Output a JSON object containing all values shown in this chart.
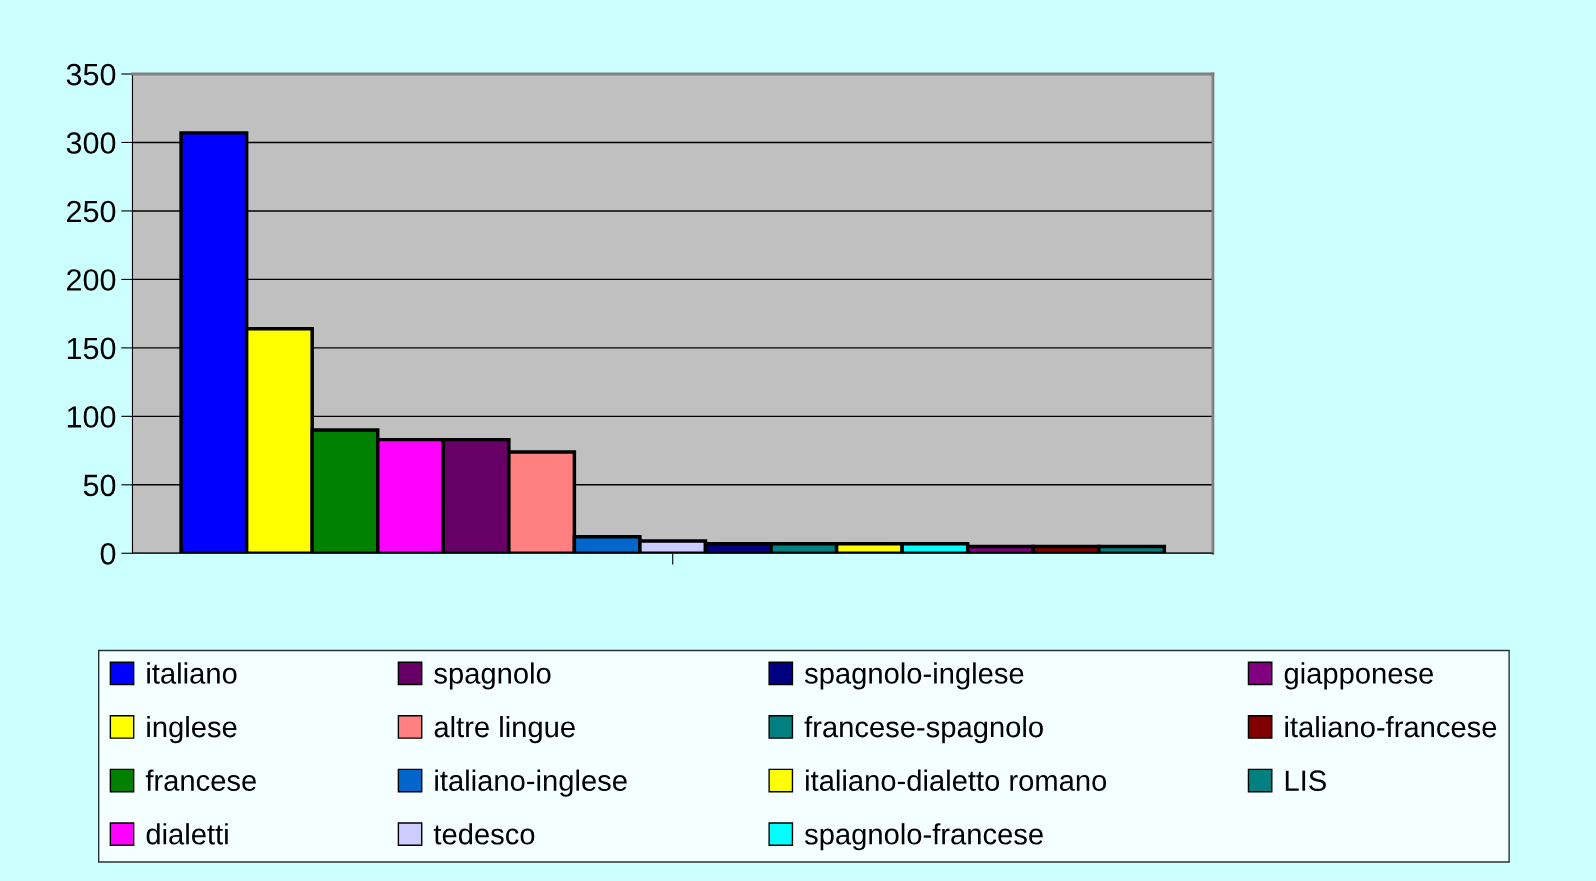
{
  "chart_data": {
    "type": "bar",
    "categories": [
      null
    ],
    "series": [
      {
        "name": "italiano",
        "color": "#0000ff",
        "values": [
          307
        ]
      },
      {
        "name": "inglese",
        "color": "#ffff00",
        "values": [
          164
        ]
      },
      {
        "name": "francese",
        "color": "#008000",
        "values": [
          90
        ]
      },
      {
        "name": "dialetti",
        "color": "#ff00ff",
        "values": [
          83
        ]
      },
      {
        "name": "spagnolo",
        "color": "#660066",
        "values": [
          83
        ]
      },
      {
        "name": "altre lingue",
        "color": "#ff8080",
        "values": [
          74
        ]
      },
      {
        "name": "italiano-inglese",
        "color": "#0066cc",
        "values": [
          12
        ]
      },
      {
        "name": "tedesco",
        "color": "#ccccff",
        "values": [
          9
        ]
      },
      {
        "name": "spagnolo-inglese",
        "color": "#000080",
        "values": [
          7
        ]
      },
      {
        "name": "francese-spagnolo",
        "color": "#008080",
        "values": [
          7
        ]
      },
      {
        "name": "italiano-dialetto romano",
        "color": "#ffff00",
        "values": [
          7
        ]
      },
      {
        "name": "spagnolo-francese",
        "color": "#00ffff",
        "values": [
          7
        ]
      },
      {
        "name": "giapponese",
        "color": "#800080",
        "values": [
          5
        ]
      },
      {
        "name": "italiano-francese",
        "color": "#800000",
        "values": [
          5
        ]
      },
      {
        "name": "LIS",
        "color": "#008080",
        "values": [
          5
        ]
      }
    ],
    "ylim": [
      0,
      350
    ],
    "yticks": [
      0,
      50,
      100,
      150,
      200,
      250,
      300,
      350
    ],
    "grid": "y",
    "legend": "bottom"
  }
}
